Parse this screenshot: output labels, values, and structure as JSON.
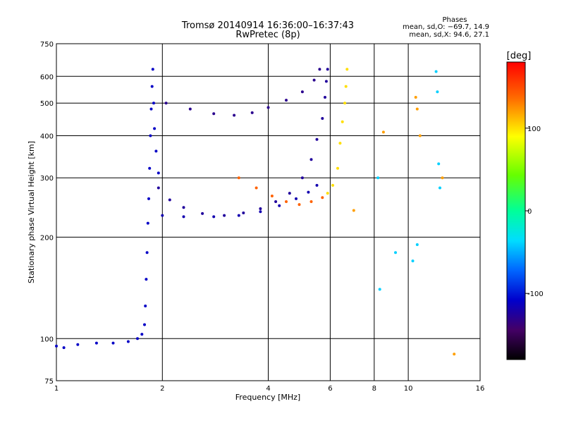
{
  "chart_data": {
    "type": "scatter",
    "title": "Tromsø 20140914 16:36:00–16:37:43",
    "subtitle": "RwPretec (8p)",
    "stats": {
      "header": "Phases",
      "o_line": "mean, sd,O: −69.7, 14.9",
      "x_line": "mean, sd,X:  94.6, 27.1"
    },
    "xlabel": "Frequency [MHz]",
    "ylabel": "Stationary phase Virtual Height [km]",
    "x_scale": "log",
    "y_scale": "log",
    "xlim": [
      1,
      16
    ],
    "ylim": [
      75,
      750
    ],
    "x_ticks": [
      1,
      2,
      4,
      6,
      8,
      10,
      16
    ],
    "y_ticks": [
      75,
      100,
      200,
      300,
      400,
      500,
      600,
      750
    ],
    "grid": true,
    "colorbar": {
      "label": "[deg]",
      "range": [
        -180,
        180
      ],
      "ticks": [
        100,
        0,
        -100
      ]
    },
    "traces": [
      {
        "name": "",
        "phase": -110,
        "points": [
          [
            1.0,
            95
          ],
          [
            1.05,
            94
          ],
          [
            1.15,
            96
          ],
          [
            1.3,
            97
          ],
          [
            1.45,
            97
          ],
          [
            1.6,
            98
          ],
          [
            1.7,
            100
          ],
          [
            1.75,
            103
          ],
          [
            1.78,
            110
          ],
          [
            1.79,
            125
          ],
          [
            1.8,
            150
          ],
          [
            1.81,
            180
          ],
          [
            1.82,
            220
          ],
          [
            1.83,
            260
          ],
          [
            1.84,
            320
          ],
          [
            1.85,
            400
          ],
          [
            1.86,
            480
          ],
          [
            1.87,
            560
          ],
          [
            1.88,
            630
          ],
          [
            1.89,
            500
          ],
          [
            1.9,
            420
          ],
          [
            1.92,
            360
          ],
          [
            1.95,
            310
          ]
        ]
      },
      {
        "name": "",
        "phase": -125,
        "points": [
          [
            1.95,
            280
          ],
          [
            2.1,
            258
          ],
          [
            2.3,
            245
          ],
          [
            2.6,
            235
          ],
          [
            3.0,
            232
          ],
          [
            3.4,
            236
          ],
          [
            3.8,
            243
          ],
          [
            4.2,
            255
          ],
          [
            4.6,
            270
          ],
          [
            5.0,
            300
          ],
          [
            5.3,
            340
          ],
          [
            5.5,
            390
          ],
          [
            5.7,
            450
          ],
          [
            5.8,
            520
          ],
          [
            5.85,
            580
          ],
          [
            5.9,
            630
          ]
        ]
      },
      {
        "name": "",
        "phase": -130,
        "points": [
          [
            2.05,
            500
          ],
          [
            2.4,
            480
          ],
          [
            2.8,
            465
          ],
          [
            3.2,
            460
          ],
          [
            3.6,
            468
          ],
          [
            4.0,
            485
          ],
          [
            4.5,
            510
          ],
          [
            5.0,
            540
          ],
          [
            5.4,
            585
          ],
          [
            5.6,
            630
          ]
        ]
      },
      {
        "name": "",
        "phase": -118,
        "points": [
          [
            2.0,
            232
          ],
          [
            2.3,
            230
          ],
          [
            2.8,
            230
          ],
          [
            3.3,
            232
          ],
          [
            3.8,
            238
          ],
          [
            4.3,
            248
          ],
          [
            4.8,
            260
          ],
          [
            5.2,
            272
          ],
          [
            5.5,
            285
          ]
        ]
      },
      {
        "name": "",
        "phase": 140,
        "points": [
          [
            3.3,
            300
          ],
          [
            3.7,
            280
          ],
          [
            4.1,
            265
          ],
          [
            4.5,
            255
          ],
          [
            4.9,
            250
          ],
          [
            5.3,
            255
          ],
          [
            5.7,
            262
          ]
        ]
      },
      {
        "name": "",
        "phase": 100,
        "points": [
          [
            5.9,
            270
          ],
          [
            6.1,
            285
          ],
          [
            6.3,
            320
          ],
          [
            6.4,
            380
          ],
          [
            6.5,
            440
          ],
          [
            6.6,
            500
          ],
          [
            6.65,
            560
          ],
          [
            6.7,
            630
          ]
        ]
      },
      {
        "name": "",
        "phase": 120,
        "points": [
          [
            8.5,
            410
          ],
          [
            10.5,
            520
          ],
          [
            10.6,
            480
          ],
          [
            10.8,
            400
          ],
          [
            12.5,
            300
          ],
          [
            13.5,
            90
          ],
          [
            7.0,
            240
          ]
        ]
      },
      {
        "name": "",
        "phase": -40,
        "points": [
          [
            8.2,
            300
          ],
          [
            8.3,
            140
          ],
          [
            9.2,
            180
          ],
          [
            10.3,
            170
          ],
          [
            10.6,
            190
          ],
          [
            12.0,
            620
          ],
          [
            12.1,
            540
          ],
          [
            12.2,
            330
          ],
          [
            12.3,
            280
          ]
        ]
      }
    ]
  }
}
